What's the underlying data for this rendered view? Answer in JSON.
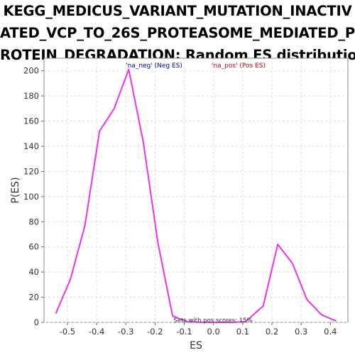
{
  "chart_data": {
    "type": "line",
    "title_lines": [
      "KEGG_MEDICUS_VARIANT_MUTATION_INACTIV",
      "ATED_VCP_TO_26S_PROTEASOME_MEDIATED_P",
      "ROTEIN_DEGRADATION: Random ES distribution"
    ],
    "xlabel": "ES",
    "ylabel": "P(ES)",
    "xlim": [
      -0.58,
      0.46
    ],
    "ylim": [
      0,
      210
    ],
    "xticks": [
      -0.5,
      -0.4,
      -0.3,
      -0.2,
      -0.1,
      0.0,
      0.1,
      0.2,
      0.3,
      0.4
    ],
    "xtick_labels": [
      "-0.5",
      "-0.4",
      "-0.3",
      "-0.2",
      "-0.1",
      "0.0",
      "0.1",
      "0.2",
      "0.3",
      "0.4"
    ],
    "yticks": [
      0,
      20,
      40,
      60,
      80,
      100,
      120,
      140,
      160,
      180,
      200
    ],
    "ytick_labels": [
      "0",
      "20",
      "40",
      "60",
      "80",
      "100",
      "120",
      "140",
      "160",
      "180",
      "200"
    ],
    "grid": true,
    "legend": [
      {
        "label": "'na_neg' (Neg ES)",
        "color": "#0000cc"
      },
      {
        "label": "'na_pos' (Pos ES)",
        "color": "#cc0000"
      }
    ],
    "annotation": "Sets with pos scores: 15%",
    "series": [
      {
        "color": "#ee33ee",
        "points": [
          [
            -0.54,
            7
          ],
          [
            -0.49,
            34
          ],
          [
            -0.44,
            77
          ],
          [
            -0.39,
            152
          ],
          [
            -0.34,
            170
          ],
          [
            -0.29,
            201
          ],
          [
            -0.24,
            143
          ],
          [
            -0.19,
            63
          ],
          [
            -0.14,
            5
          ],
          [
            -0.09,
            0.5
          ],
          [
            -0.04,
            0
          ],
          [
            0.01,
            0
          ],
          [
            0.06,
            0
          ],
          [
            0.11,
            0.5
          ],
          [
            0.17,
            13
          ],
          [
            0.22,
            62
          ],
          [
            0.27,
            47
          ],
          [
            0.32,
            18
          ],
          [
            0.37,
            6
          ],
          [
            0.42,
            1
          ]
        ]
      }
    ]
  }
}
